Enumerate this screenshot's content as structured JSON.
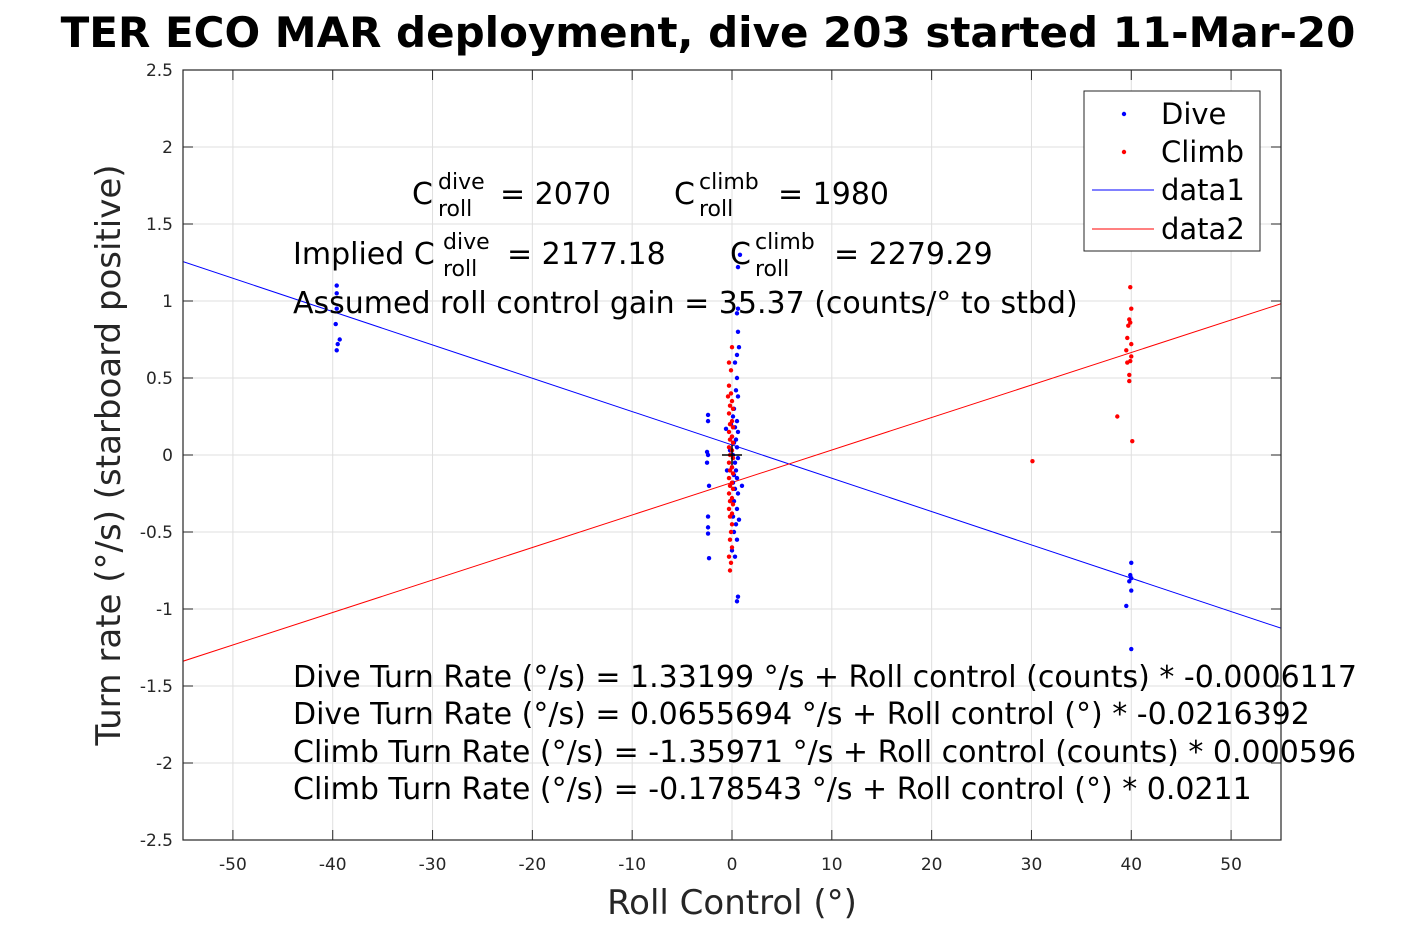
{
  "chart_data": {
    "type": "scatter",
    "title": "TER ECO MAR deployment, dive 203 started 11-Mar-20",
    "xlabel": "Roll Control (°)",
    "ylabel": "Turn rate (°/s) (starboard positive)",
    "xlim": [
      -55,
      55
    ],
    "ylim": [
      -2.5,
      2.5
    ],
    "xticks": [
      -50,
      -40,
      -30,
      -20,
      -10,
      0,
      10,
      20,
      30,
      40,
      50
    ],
    "yticks": [
      -2.5,
      -2,
      -1.5,
      -1,
      -0.5,
      0,
      0.5,
      1,
      1.5,
      2,
      2.5
    ],
    "xtick_labels": [
      "-50",
      "-40",
      "-30",
      "-20",
      "-10",
      "0",
      "10",
      "20",
      "30",
      "40",
      "50"
    ],
    "ytick_labels": [
      "-2.5",
      "-2",
      "-1.5",
      "-1",
      "-0.5",
      "0",
      "0.5",
      "1",
      "1.5",
      "2",
      "2.5"
    ],
    "grid": true,
    "legend_position": "top-right",
    "legend": [
      "Dive",
      "Climb",
      "data1",
      "data2"
    ],
    "series": [
      {
        "name": "Dive",
        "kind": "scatter",
        "color": "#0000ff",
        "points": [
          [
            -39.6,
            1.1
          ],
          [
            -39.6,
            1.05
          ],
          [
            -39.6,
            0.95
          ],
          [
            -39.7,
            0.85
          ],
          [
            -39.3,
            0.75
          ],
          [
            -39.5,
            0.72
          ],
          [
            -39.6,
            0.68
          ],
          [
            -2.4,
            0.26
          ],
          [
            -2.4,
            0.22
          ],
          [
            -2.5,
            0.02
          ],
          [
            -2.4,
            0.0
          ],
          [
            -2.5,
            -0.05
          ],
          [
            -2.3,
            -0.2
          ],
          [
            -2.4,
            -0.4
          ],
          [
            -2.4,
            -0.47
          ],
          [
            -2.4,
            -0.51
          ],
          [
            -2.3,
            -0.67
          ],
          [
            0.6,
            1.22
          ],
          [
            0.8,
            1.3
          ],
          [
            0.6,
            0.95
          ],
          [
            0.5,
            0.92
          ],
          [
            0.6,
            0.8
          ],
          [
            0.7,
            0.7
          ],
          [
            0.5,
            0.65
          ],
          [
            0.3,
            0.6
          ],
          [
            0.5,
            0.5
          ],
          [
            0.4,
            0.42
          ],
          [
            0.6,
            0.38
          ],
          [
            0.2,
            0.3
          ],
          [
            0.1,
            0.25
          ],
          [
            0.5,
            0.22
          ],
          [
            -0.1,
            0.2
          ],
          [
            0.3,
            0.18
          ],
          [
            0.6,
            0.15
          ],
          [
            0.0,
            0.12
          ],
          [
            0.4,
            0.1
          ],
          [
            0.2,
            0.08
          ],
          [
            0.5,
            0.05
          ],
          [
            -0.2,
            0.03
          ],
          [
            0.1,
            0.0
          ],
          [
            0.6,
            -0.02
          ],
          [
            0.3,
            -0.05
          ],
          [
            0.0,
            -0.08
          ],
          [
            0.4,
            -0.1
          ],
          [
            0.2,
            -0.13
          ],
          [
            0.5,
            -0.15
          ],
          [
            0.1,
            -0.18
          ],
          [
            1.0,
            -0.2
          ],
          [
            0.3,
            -0.22
          ],
          [
            0.6,
            -0.25
          ],
          [
            0.2,
            -0.3
          ],
          [
            0.5,
            -0.35
          ],
          [
            0.1,
            -0.4
          ],
          [
            0.7,
            -0.42
          ],
          [
            0.4,
            -0.45
          ],
          [
            0.2,
            -0.5
          ],
          [
            0.5,
            -0.55
          ],
          [
            0.0,
            -0.62
          ],
          [
            0.3,
            -0.66
          ],
          [
            -0.6,
            0.17
          ],
          [
            -0.5,
            -0.1
          ],
          [
            0.6,
            -0.92
          ],
          [
            0.5,
            -0.95
          ],
          [
            40.0,
            -0.7
          ],
          [
            39.9,
            -0.78
          ],
          [
            40.0,
            -0.8
          ],
          [
            39.8,
            -0.82
          ],
          [
            40.0,
            -0.88
          ],
          [
            39.5,
            -0.98
          ],
          [
            40.0,
            -1.26
          ]
        ]
      },
      {
        "name": "Climb",
        "kind": "scatter",
        "color": "#ff0000",
        "points": [
          [
            -0.3,
            0.45
          ],
          [
            -0.1,
            0.4
          ],
          [
            -0.4,
            0.38
          ],
          [
            0.0,
            0.35
          ],
          [
            -0.2,
            0.32
          ],
          [
            0.1,
            0.3
          ],
          [
            -0.3,
            0.27
          ],
          [
            0.0,
            0.22
          ],
          [
            -0.2,
            0.2
          ],
          [
            0.1,
            0.18
          ],
          [
            -0.3,
            0.15
          ],
          [
            0.0,
            0.12
          ],
          [
            -0.2,
            0.1
          ],
          [
            0.1,
            0.08
          ],
          [
            -0.3,
            0.05
          ],
          [
            0.0,
            0.03
          ],
          [
            -0.2,
            0.0
          ],
          [
            0.1,
            -0.02
          ],
          [
            -0.3,
            -0.05
          ],
          [
            0.0,
            -0.08
          ],
          [
            -0.2,
            -0.1
          ],
          [
            0.1,
            -0.12
          ],
          [
            -0.3,
            -0.15
          ],
          [
            0.0,
            -0.18
          ],
          [
            -0.2,
            -0.2
          ],
          [
            0.1,
            -0.22
          ],
          [
            -0.3,
            -0.25
          ],
          [
            0.0,
            -0.28
          ],
          [
            -0.2,
            -0.3
          ],
          [
            0.1,
            -0.32
          ],
          [
            -0.3,
            -0.35
          ],
          [
            0.0,
            -0.38
          ],
          [
            -0.2,
            -0.4
          ],
          [
            0.0,
            -0.45
          ],
          [
            -0.1,
            -0.5
          ],
          [
            -0.2,
            -0.55
          ],
          [
            0.0,
            -0.6
          ],
          [
            -0.3,
            -0.66
          ],
          [
            -0.1,
            -0.7
          ],
          [
            -0.2,
            -0.75
          ],
          [
            -0.3,
            0.6
          ],
          [
            0.0,
            0.7
          ],
          [
            -0.1,
            0.55
          ],
          [
            30.1,
            -0.04
          ],
          [
            38.6,
            0.25
          ],
          [
            39.9,
            1.09
          ],
          [
            40.0,
            0.95
          ],
          [
            39.8,
            0.88
          ],
          [
            39.9,
            0.86
          ],
          [
            39.7,
            0.84
          ],
          [
            39.6,
            0.76
          ],
          [
            40.0,
            0.72
          ],
          [
            39.5,
            0.68
          ],
          [
            40.0,
            0.64
          ],
          [
            39.9,
            0.61
          ],
          [
            39.6,
            0.6
          ],
          [
            39.8,
            0.52
          ],
          [
            39.8,
            0.48
          ],
          [
            40.1,
            0.09
          ]
        ]
      },
      {
        "name": "data1",
        "kind": "line",
        "color": "#0000ff",
        "intercept": 0.0655694,
        "slope": -0.0216392
      },
      {
        "name": "data2",
        "kind": "line",
        "color": "#ff0000",
        "intercept": -0.178543,
        "slope": 0.0211
      }
    ],
    "annotations": {
      "c_dive_value": "= 2070",
      "c_climb_value": "= 1980",
      "implied_prefix": "Implied C",
      "implied_dive_value": "= 2177.18",
      "implied_climb_value": "= 2279.29",
      "c_letter": "C",
      "sup_dive": "dive",
      "sup_climb": "climb",
      "sub_roll": "roll",
      "gain_text": "Assumed roll control gain = 35.37 (counts/° to stbd)",
      "equations": [
        "Dive Turn Rate (°/s) = 1.33199 °/s + Roll control (counts) * -0.0006117",
        "Dive Turn Rate (°/s) = 0.0655694 °/s + Roll control (°) * -0.0216392",
        "Climb Turn Rate (°/s) = -1.35971 °/s + Roll control (counts) * 0.000596",
        "Climb Turn Rate (°/s) = -0.178543 °/s + Roll control (°) * 0.0211"
      ]
    }
  }
}
